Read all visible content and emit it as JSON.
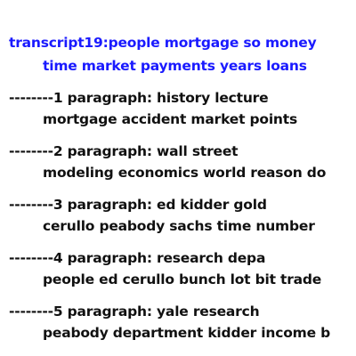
{
  "transcript": {
    "title_line1": "transcript19:people mortgage so money",
    "title_line2": "time market payments years loans",
    "title_color": "#1a1aff",
    "paragraphs": [
      {
        "heading": "--------1 paragraph: history lecture",
        "body": "mortgage accident market points"
      },
      {
        "heading": "--------2 paragraph: wall street",
        "body": "modeling economics world reason do"
      },
      {
        "heading": "--------3 paragraph: ed kidder gold",
        "body": "cerullo peabody sachs time number"
      },
      {
        "heading": "--------4 paragraph: research depa",
        "body": "people ed cerullo bunch lot bit trade"
      },
      {
        "heading": "--------5 paragraph: yale research",
        "body": "peabody department kidder income b"
      }
    ]
  }
}
